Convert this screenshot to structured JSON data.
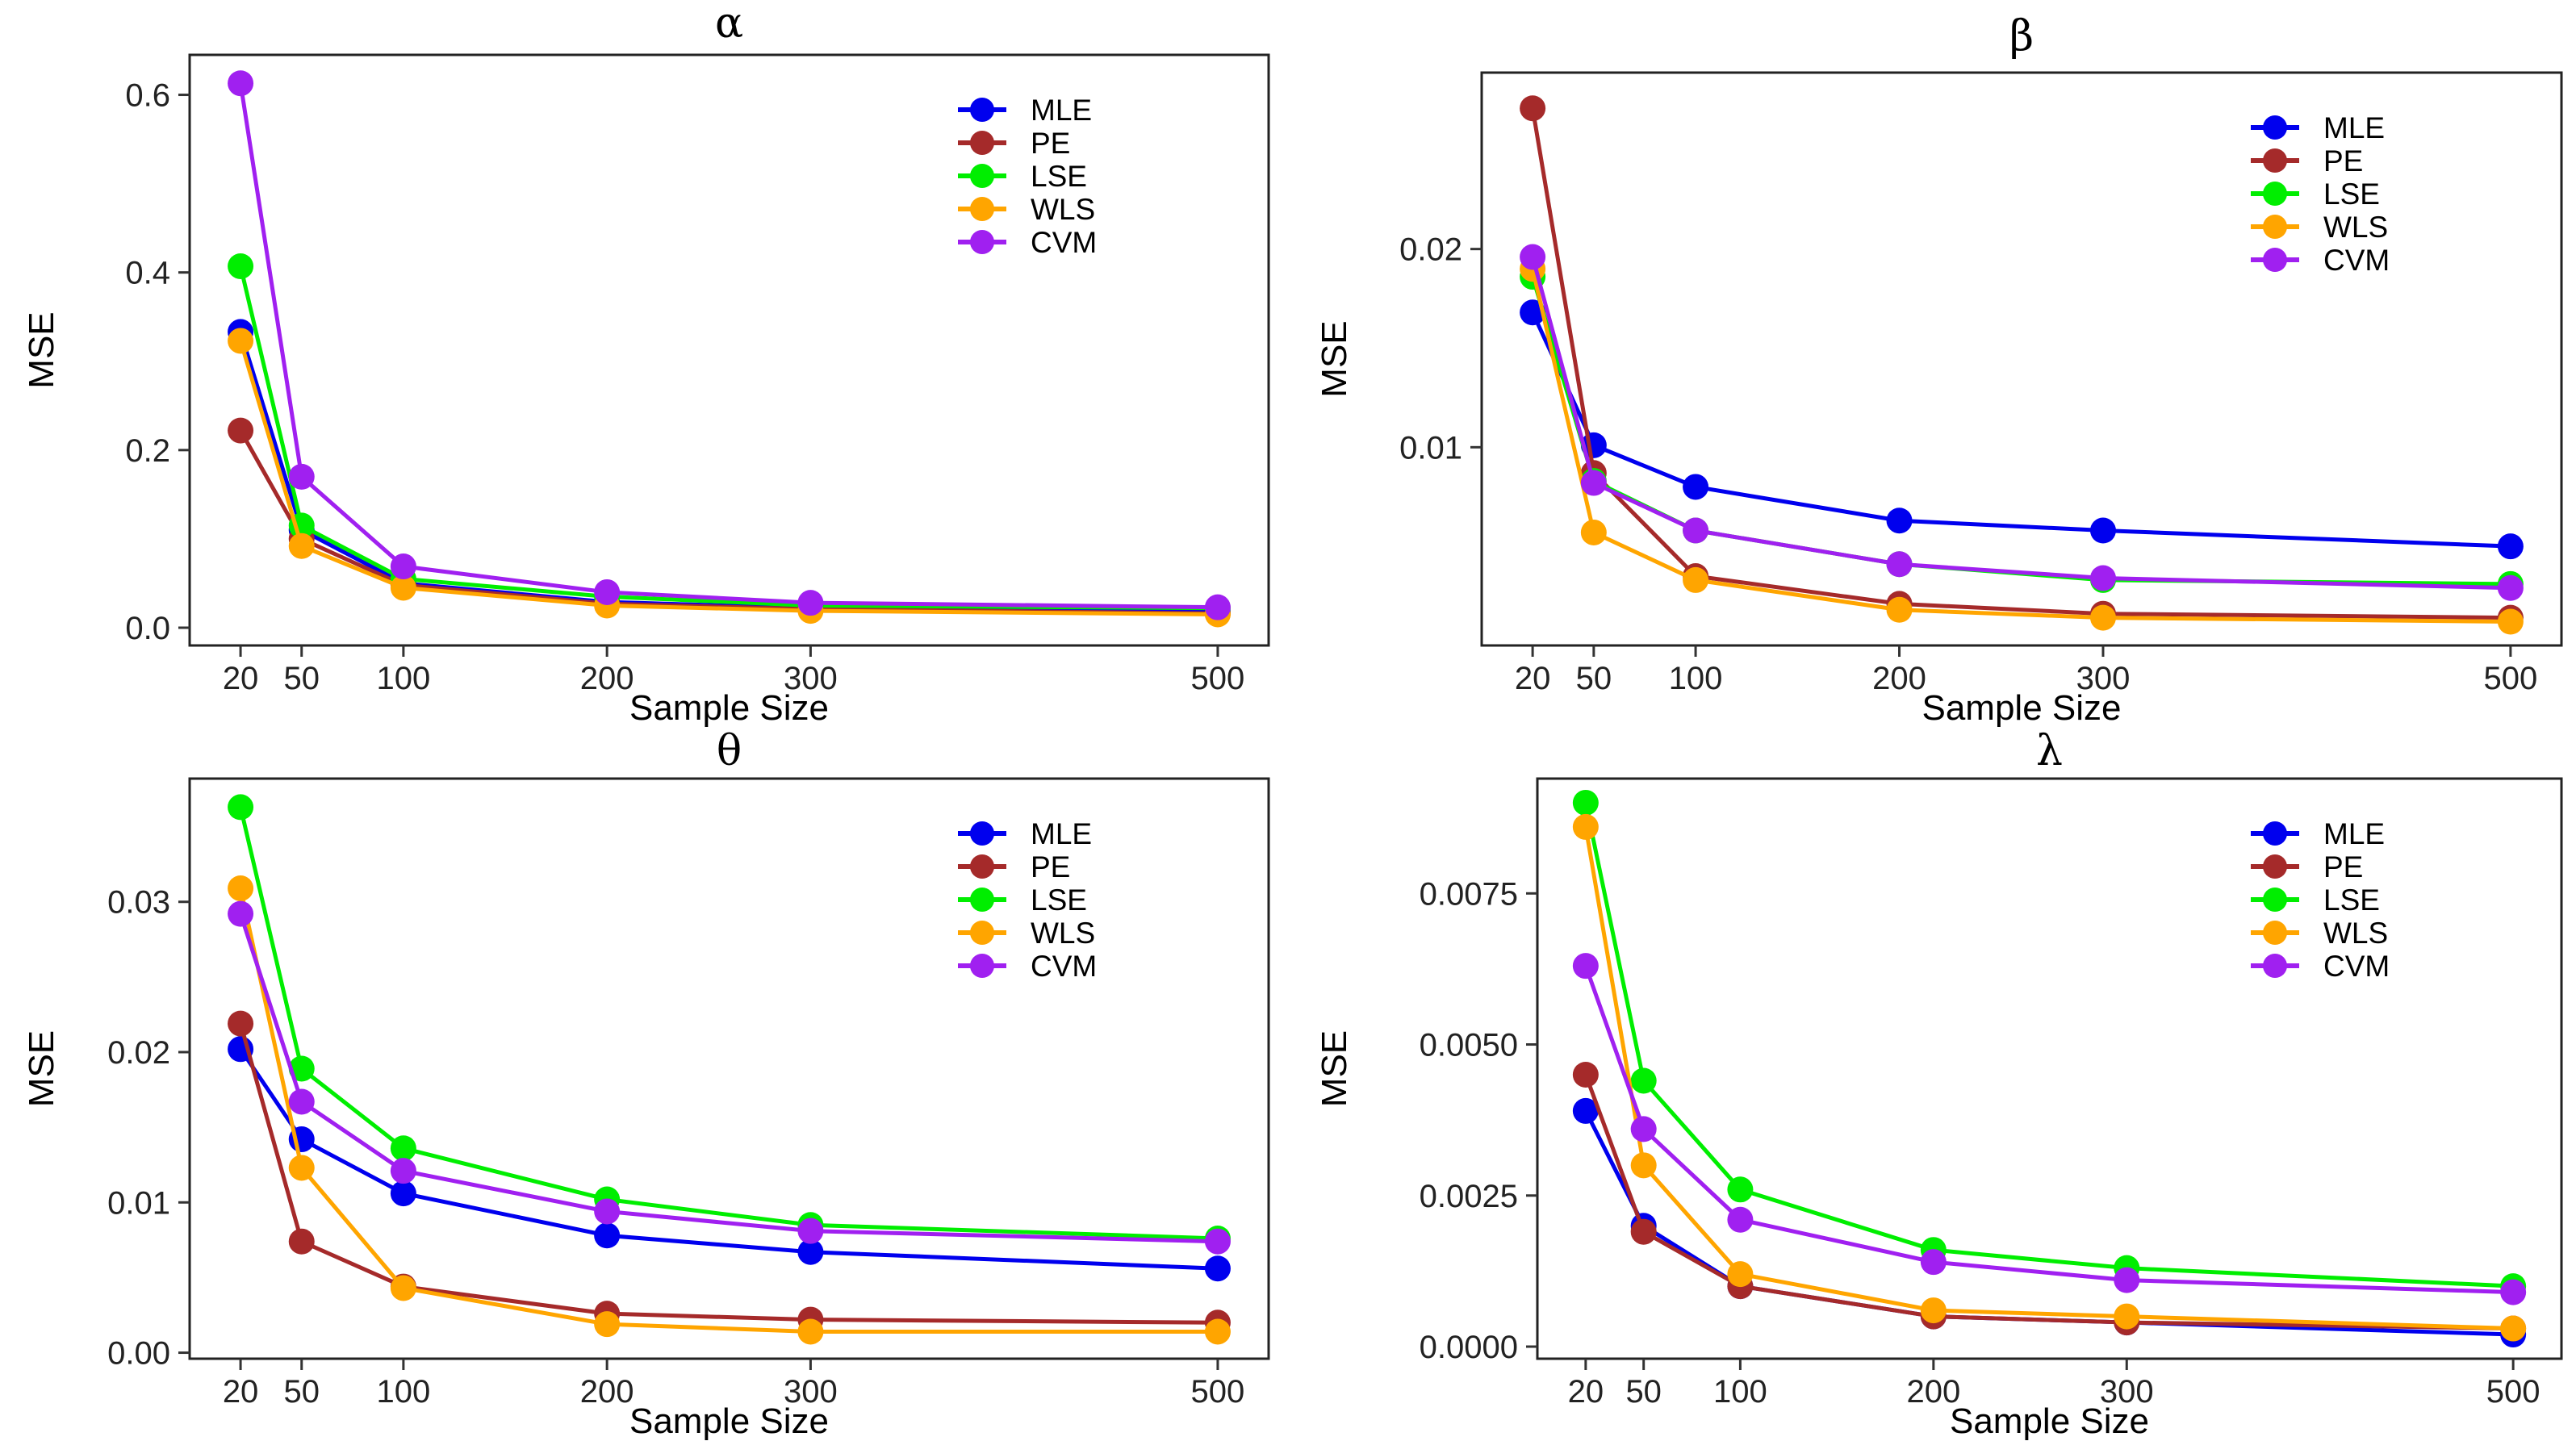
{
  "colors": {
    "MLE": "#0000ee",
    "PE": "#a52a2a",
    "LSE": "#00ee00",
    "WLS": "#ffa500",
    "CVM": "#a020f0"
  },
  "chart_data": [
    {
      "type": "line",
      "title": "α",
      "xlabel": "Sample Size",
      "ylabel": "MSE",
      "x": [
        20,
        50,
        100,
        200,
        300,
        500
      ],
      "xlim": [
        -5,
        525
      ],
      "ylim": [
        -0.02,
        0.645
      ],
      "yticks": [
        0.0,
        0.2,
        0.4,
        0.6
      ],
      "ytick_labels": [
        "0.0",
        "0.2",
        "0.4",
        "0.6"
      ],
      "legend_position": "top-right",
      "series": [
        {
          "name": "MLE",
          "values": [
            0.333,
            0.11,
            0.05,
            0.029,
            0.022,
            0.018
          ]
        },
        {
          "name": "PE",
          "values": [
            0.222,
            0.1,
            0.048,
            0.027,
            0.021,
            0.016
          ]
        },
        {
          "name": "LSE",
          "values": [
            0.407,
            0.115,
            0.055,
            0.035,
            0.025,
            0.022
          ]
        },
        {
          "name": "WLS",
          "values": [
            0.323,
            0.092,
            0.045,
            0.025,
            0.019,
            0.015
          ]
        },
        {
          "name": "CVM",
          "values": [
            0.613,
            0.17,
            0.069,
            0.04,
            0.028,
            0.023
          ]
        }
      ]
    },
    {
      "type": "line",
      "title": "β",
      "xlabel": "Sample Size",
      "ylabel": "MSE",
      "x": [
        20,
        50,
        100,
        200,
        300,
        500
      ],
      "xlim": [
        -5,
        525
      ],
      "ylim": [
        0.0,
        0.0289
      ],
      "yticks": [
        0.01,
        0.02
      ],
      "ytick_labels": [
        "0.01",
        "0.02"
      ],
      "legend_position": "top-right",
      "series": [
        {
          "name": "MLE",
          "values": [
            0.0168,
            0.0101,
            0.008,
            0.0063,
            0.0058,
            0.005
          ]
        },
        {
          "name": "PE",
          "values": [
            0.0271,
            0.0087,
            0.0035,
            0.0021,
            0.0016,
            0.0014
          ]
        },
        {
          "name": "LSE",
          "values": [
            0.0186,
            0.0083,
            0.0058,
            0.0041,
            0.0033,
            0.0031
          ]
        },
        {
          "name": "WLS",
          "values": [
            0.019,
            0.0057,
            0.0033,
            0.0018,
            0.0014,
            0.0012
          ]
        },
        {
          "name": "CVM",
          "values": [
            0.0196,
            0.0082,
            0.0058,
            0.0041,
            0.0034,
            0.0029
          ]
        }
      ]
    },
    {
      "type": "line",
      "title": "θ",
      "xlabel": "Sample Size",
      "ylabel": "MSE",
      "x": [
        20,
        50,
        100,
        200,
        300,
        500
      ],
      "xlim": [
        -5,
        525
      ],
      "ylim": [
        -0.0004,
        0.0382
      ],
      "yticks": [
        0.0,
        0.01,
        0.02,
        0.03
      ],
      "ytick_labels": [
        "0.00",
        "0.01",
        "0.02",
        "0.03"
      ],
      "legend_position": "top-right",
      "series": [
        {
          "name": "MLE",
          "values": [
            0.0202,
            0.0142,
            0.0106,
            0.0078,
            0.0067,
            0.0056
          ]
        },
        {
          "name": "PE",
          "values": [
            0.0219,
            0.0074,
            0.0044,
            0.0026,
            0.0022,
            0.002
          ]
        },
        {
          "name": "LSE",
          "values": [
            0.0363,
            0.0189,
            0.0136,
            0.0102,
            0.0085,
            0.0076
          ]
        },
        {
          "name": "WLS",
          "values": [
            0.0309,
            0.0123,
            0.0043,
            0.0019,
            0.0014,
            0.0014
          ]
        },
        {
          "name": "CVM",
          "values": [
            0.0292,
            0.0167,
            0.0121,
            0.0094,
            0.0081,
            0.0074
          ]
        }
      ]
    },
    {
      "type": "line",
      "title": "λ",
      "xlabel": "Sample Size",
      "ylabel": "MSE",
      "x": [
        20,
        50,
        100,
        200,
        300,
        500
      ],
      "xlim": [
        -5,
        525
      ],
      "ylim": [
        -0.0002,
        0.0094
      ],
      "yticks": [
        0.0,
        0.0025,
        0.005,
        0.0075
      ],
      "ytick_labels": [
        "0.0000",
        "0.0025",
        "0.0050",
        "0.0075"
      ],
      "legend_position": "top-right",
      "series": [
        {
          "name": "MLE",
          "values": [
            0.0039,
            0.002,
            0.001,
            0.0005,
            0.0004,
            0.0002
          ]
        },
        {
          "name": "PE",
          "values": [
            0.0045,
            0.0019,
            0.001,
            0.0005,
            0.0004,
            0.0003
          ]
        },
        {
          "name": "LSE",
          "values": [
            0.009,
            0.0044,
            0.0026,
            0.0016,
            0.0013,
            0.001
          ]
        },
        {
          "name": "WLS",
          "values": [
            0.0086,
            0.003,
            0.0012,
            0.0006,
            0.0005,
            0.0003
          ]
        },
        {
          "name": "CVM",
          "values": [
            0.0063,
            0.0036,
            0.0021,
            0.0014,
            0.0011,
            0.0009
          ]
        }
      ]
    }
  ]
}
